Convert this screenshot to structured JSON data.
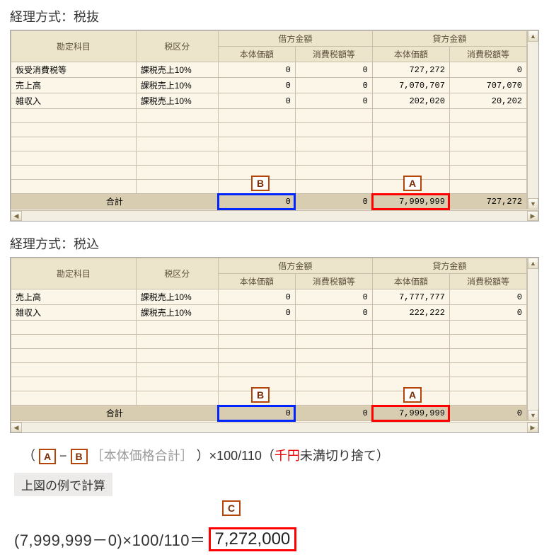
{
  "section1": {
    "title": "経理方式：税抜",
    "headers": {
      "account": "勘定科目",
      "taxclass": "税区分",
      "debit": "借方金額",
      "credit": "貸方金額",
      "base": "本体価額",
      "tax": "消費税額等"
    },
    "rows": [
      {
        "acct": "仮受消費税等",
        "tax": "課税売上10%",
        "d_base": "0",
        "d_tax": "0",
        "c_base": "727,272",
        "c_tax": "0"
      },
      {
        "acct": "売上高",
        "tax": "課税売上10%",
        "d_base": "0",
        "d_tax": "0",
        "c_base": "7,070,707",
        "c_tax": "707,070"
      },
      {
        "acct": "雑収入",
        "tax": "課税売上10%",
        "d_base": "0",
        "d_tax": "0",
        "c_base": "202,020",
        "c_tax": "20,202"
      }
    ],
    "total": {
      "label": "合計",
      "d_base": "0",
      "d_tax": "0",
      "c_base": "7,999,999",
      "c_tax": "727,272"
    },
    "callouts": {
      "A": "A",
      "B": "B"
    }
  },
  "section2": {
    "title": "経理方式：税込",
    "headers": {
      "account": "勘定科目",
      "taxclass": "税区分",
      "debit": "借方金額",
      "credit": "貸方金額",
      "base": "本体価額",
      "tax": "消費税額等"
    },
    "rows": [
      {
        "acct": "売上高",
        "tax": "課税売上10%",
        "d_base": "0",
        "d_tax": "0",
        "c_base": "7,777,777",
        "c_tax": "0"
      },
      {
        "acct": "雑収入",
        "tax": "課税売上10%",
        "d_base": "0",
        "d_tax": "0",
        "c_base": "222,222",
        "c_tax": "0"
      }
    ],
    "total": {
      "label": "合計",
      "d_base": "0",
      "d_tax": "0",
      "c_base": "7,999,999",
      "c_tax": "0"
    },
    "callouts": {
      "A": "A",
      "B": "B"
    }
  },
  "formula": {
    "A": "A",
    "B": "B",
    "gray": "［本体価格合計］",
    "tail1": "）×100/110（",
    "red": "千円",
    "tail2": "未満切り捨て）",
    "open": "（",
    "dash": "−"
  },
  "example": {
    "label": "上図の例で計算",
    "C": "C"
  },
  "calc": {
    "lhs": "(7,999,999－0)×100/110＝",
    "res": "7,272,000"
  },
  "colors": {
    "callout": "#b5460a",
    "blue": "#0026ff",
    "red": "#ff0000"
  }
}
